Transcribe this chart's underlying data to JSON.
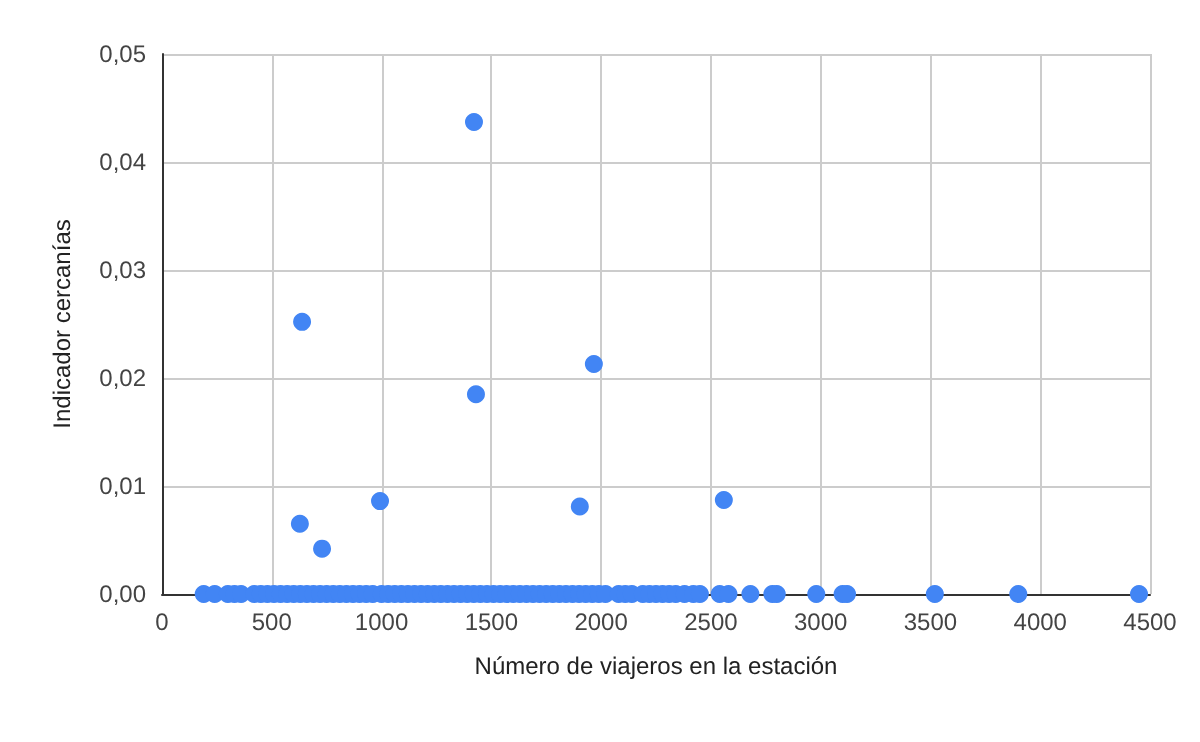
{
  "chart_data": {
    "type": "scatter",
    "xlabel": "Número de viajeros en la estación",
    "ylabel": "Indicador cercanías",
    "x": [
      190,
      240,
      300,
      330,
      360,
      420,
      450,
      480,
      510,
      540,
      570,
      600,
      630,
      660,
      690,
      720,
      750,
      780,
      810,
      840,
      870,
      900,
      930,
      960,
      1000,
      1030,
      1060,
      1090,
      1120,
      1150,
      1180,
      1210,
      1240,
      1270,
      1300,
      1330,
      1360,
      1390,
      1420,
      1450,
      1480,
      1510,
      1540,
      1570,
      1600,
      1630,
      1660,
      1690,
      1720,
      1750,
      1780,
      1810,
      1840,
      1870,
      1900,
      1930,
      1960,
      1990,
      2020,
      2080,
      2110,
      2140,
      2190,
      2220,
      2250,
      2280,
      2310,
      2340,
      2380,
      2420,
      2450,
      2540,
      2580,
      2680,
      2780,
      2800,
      2980,
      3100,
      3120,
      3520,
      3900,
      4450,
      1421,
      638,
      1967,
      1430,
      1903,
      2559,
      993,
      628,
      729
    ],
    "values": [
      0,
      0,
      0,
      0,
      0,
      0,
      0,
      0,
      0,
      0,
      0,
      0,
      0,
      0,
      0,
      0,
      0,
      0,
      0,
      0,
      0,
      0,
      0,
      0,
      0,
      0,
      0,
      0,
      0,
      0,
      0,
      0,
      0,
      0,
      0,
      0,
      0,
      0,
      0,
      0,
      0,
      0,
      0,
      0,
      0,
      0,
      0,
      0,
      0,
      0,
      0,
      0,
      0,
      0,
      0,
      0,
      0,
      0,
      0,
      0,
      0,
      0,
      0,
      0,
      0,
      0,
      0,
      0,
      0,
      0,
      0,
      0,
      0,
      0,
      0,
      0,
      0,
      0,
      0,
      0,
      0,
      0,
      0.0437,
      0.0252,
      0.0213,
      0.0185,
      0.0081,
      0.0087,
      0.0086,
      0.0065,
      0.0042
    ],
    "color": "#4285f4",
    "marker": "circle",
    "grid": true,
    "xlim": [
      0,
      4500
    ],
    "xticks": [
      0,
      500,
      1000,
      1500,
      2000,
      2500,
      3000,
      3500,
      4000,
      4500
    ],
    "ylim": [
      0,
      0.05
    ],
    "yticks": [
      {
        "value": 0,
        "label": "0,00"
      },
      {
        "value": 0.01,
        "label": "0,01"
      },
      {
        "value": 0.02,
        "label": "0,02"
      },
      {
        "value": 0.03,
        "label": "0,03"
      },
      {
        "value": 0.04,
        "label": "0,04"
      },
      {
        "value": 0.05,
        "label": "0,05"
      }
    ]
  }
}
